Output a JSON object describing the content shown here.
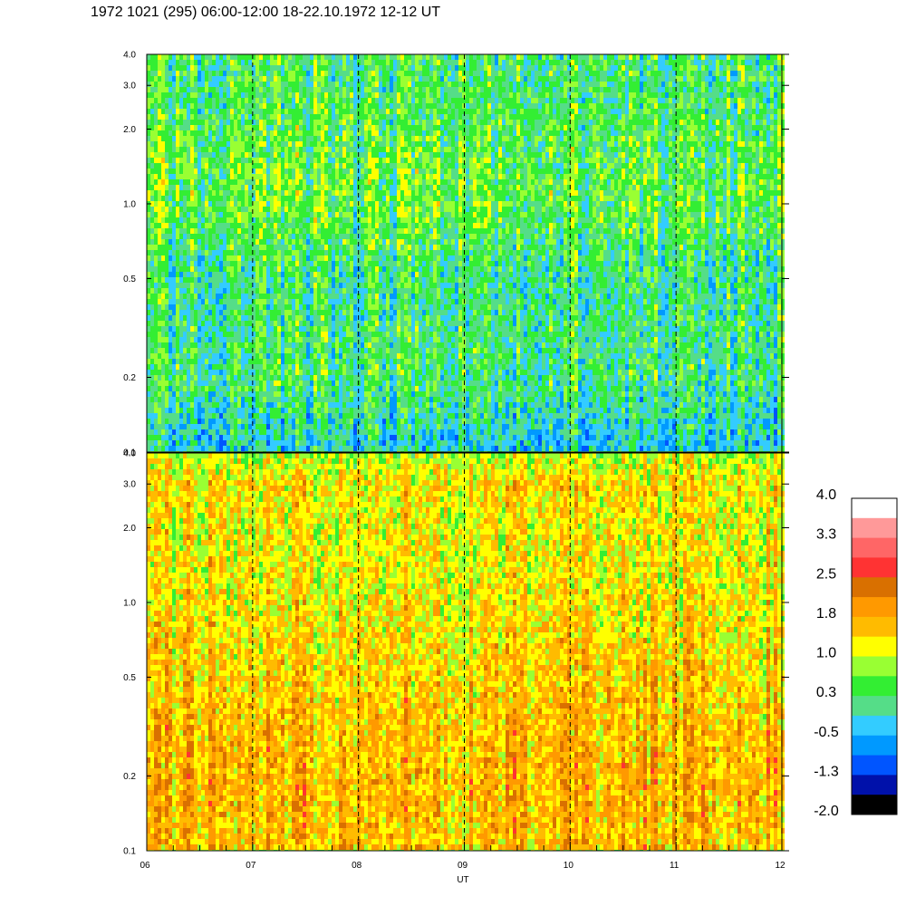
{
  "title": "1972 1021 (295) 06:00-12:00 18-22.10.1972  12-12 UT",
  "chart_data": {
    "type": "heatmap",
    "title": "1972 1021 (295) 06:00-12:00 18-22.10.1972  12-12 UT",
    "xlabel": "UT",
    "x_ticks": [
      "06",
      "07",
      "08",
      "09",
      "10",
      "11",
      "12"
    ],
    "xlim": [
      6,
      12
    ],
    "y_scale": "log",
    "ylim": [
      0.1,
      4.0
    ],
    "y_ticks": [
      0.1,
      0.2,
      0.5,
      1.0,
      2.0,
      3.0,
      4.0
    ],
    "y_tick_labels": [
      "0.1",
      "0.2",
      "0.5",
      "1.0",
      "2.0",
      "3.0",
      "4.0"
    ],
    "grid": "dashed vertical lines at each hour",
    "panels": [
      {
        "name": "upper",
        "profile": [
          {
            "y": 0.1,
            "value": -0.3
          },
          {
            "y": 0.2,
            "value": 0.2
          },
          {
            "y": 0.5,
            "value": 0.1
          },
          {
            "y": 1.0,
            "value": 0.5
          },
          {
            "y": 2.0,
            "value": 0.4
          },
          {
            "y": 3.0,
            "value": 0.2
          },
          {
            "y": 4.0,
            "value": 0.3
          }
        ]
      },
      {
        "name": "lower",
        "profile": [
          {
            "y": 0.1,
            "value": 1.6
          },
          {
            "y": 0.2,
            "value": 1.7
          },
          {
            "y": 0.5,
            "value": 1.5
          },
          {
            "y": 1.0,
            "value": 1.3
          },
          {
            "y": 2.0,
            "value": 1.2
          },
          {
            "y": 3.0,
            "value": 1.4
          },
          {
            "y": 4.0,
            "value": 0.9
          }
        ]
      }
    ],
    "colorbar": {
      "labels": [
        "4.0",
        "3.3",
        "2.5",
        "1.8",
        "1.0",
        "0.3",
        "-0.5",
        "-1.3",
        "-2.0"
      ],
      "colors": [
        "#ffffff",
        "#ff9999",
        "#ff6666",
        "#ff3333",
        "#d97000",
        "#ff9900",
        "#ffbb00",
        "#ffff00",
        "#99ff33",
        "#33ee33",
        "#55dd88",
        "#33ccff",
        "#0099ff",
        "#0055ff",
        "#0011aa",
        "#000000"
      ]
    }
  }
}
